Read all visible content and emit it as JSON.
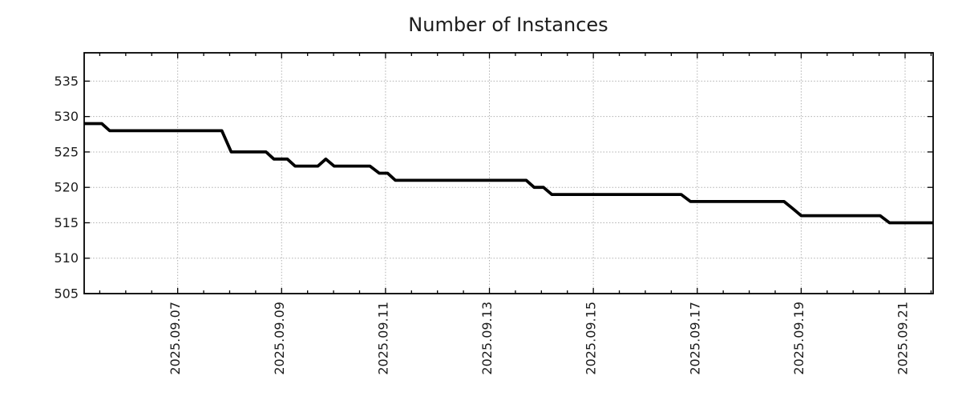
{
  "chart_data": {
    "type": "line",
    "title": "Number of Instances",
    "x_axis": {
      "tick_labels": [
        "2025.09.07",
        "2025.09.09",
        "2025.09.11",
        "2025.09.13",
        "2025.09.15",
        "2025.09.17",
        "2025.09.19",
        "2025.09.21"
      ],
      "tick_days": [
        7,
        9,
        11,
        13,
        15,
        17,
        19,
        21
      ],
      "minor_tick_step_days": 0.5,
      "xlim_days": [
        5.2,
        21.54
      ],
      "label_rotation_deg": 90
    },
    "y_axis": {
      "tick_labels": [
        "505",
        "510",
        "515",
        "520",
        "525",
        "530",
        "535"
      ],
      "tick_values": [
        505,
        510,
        515,
        520,
        525,
        530,
        535
      ],
      "ylim": [
        505,
        539
      ]
    },
    "grid": true,
    "colors": {
      "line": "#000000",
      "grid": "#b0b0b0",
      "axis": "#000000",
      "text": "#1c1c1c",
      "background": "#ffffff"
    },
    "series": [
      {
        "name": "Number of Instances",
        "points_day_value": [
          [
            5.2,
            529
          ],
          [
            5.54,
            529
          ],
          [
            5.69,
            528
          ],
          [
            7.85,
            528
          ],
          [
            8.03,
            525
          ],
          [
            8.7,
            525
          ],
          [
            8.85,
            524
          ],
          [
            9.11,
            524
          ],
          [
            9.26,
            523
          ],
          [
            9.7,
            523
          ],
          [
            9.85,
            524
          ],
          [
            10.01,
            523
          ],
          [
            10.7,
            523
          ],
          [
            10.88,
            522
          ],
          [
            11.04,
            522
          ],
          [
            11.19,
            521
          ],
          [
            13.71,
            521
          ],
          [
            13.86,
            520
          ],
          [
            14.04,
            520
          ],
          [
            14.2,
            519
          ],
          [
            16.69,
            519
          ],
          [
            16.87,
            518
          ],
          [
            18.67,
            518
          ],
          [
            18.84,
            517
          ],
          [
            19.0,
            516
          ],
          [
            20.52,
            516
          ],
          [
            20.7,
            515
          ],
          [
            21.54,
            515
          ]
        ]
      }
    ]
  }
}
